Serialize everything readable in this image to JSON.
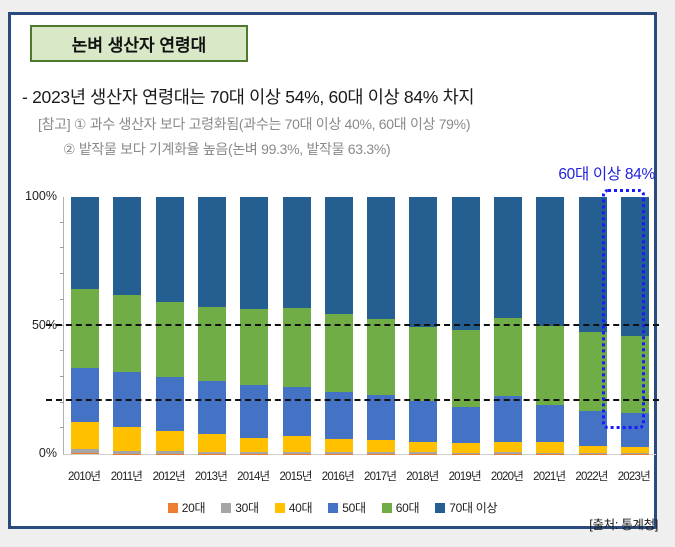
{
  "header": {
    "title": "논벼 생산자 연령대",
    "bullet": "- 2023년 생산자 연령대는 70대 이상 54%, 60대 이상 84% 차지",
    "note1": "[참고] ① 과수 생산자 보다 고령화됨(과수는 70대 이상 40%, 60대 이상 79%)",
    "note2": "② 밭작물 보다 기계화율 높음(논벼 99.3%, 밭작물 63.3%)"
  },
  "annotation": {
    "text": "60대 이상 84%",
    "color": "#2222dd",
    "box_color": "#1a1aff",
    "highlighted_year": "2023년"
  },
  "footer": {
    "source": "[출처: 통계청]"
  },
  "colors": {
    "frame_border": "#2b4a7d",
    "title_box_bg": "#d9e8c6",
    "title_box_border": "#4e7a2e",
    "note_gray": "#8a8a8a",
    "page_bg": "#efefef"
  },
  "chart_data": {
    "type": "bar",
    "stacked": true,
    "unit": "%",
    "categories": [
      "2010년",
      "2011년",
      "2012년",
      "2013년",
      "2014년",
      "2015년",
      "2016년",
      "2017년",
      "2018년",
      "2019년",
      "2020년",
      "2021년",
      "2022년",
      "2023년"
    ],
    "series": [
      {
        "name": "20대",
        "color": "#ED7D31",
        "values": [
          0.3,
          0.2,
          0.2,
          0.2,
          0.2,
          0.2,
          0.2,
          0.15,
          0.15,
          0.1,
          0.1,
          0.1,
          0.1,
          0.1
        ]
      },
      {
        "name": "30대",
        "color": "#A5A5A5",
        "values": [
          1.6,
          1.0,
          0.8,
          0.7,
          0.7,
          0.5,
          0.5,
          0.45,
          0.45,
          0.4,
          0.5,
          0.4,
          0.3,
          0.3
        ]
      },
      {
        "name": "40대",
        "color": "#FFC000",
        "values": [
          10.7,
          9.4,
          7.9,
          6.8,
          5.5,
          6.3,
          5.1,
          4.8,
          3.9,
          3.6,
          4.2,
          4.0,
          2.7,
          2.5
        ]
      },
      {
        "name": "50대",
        "color": "#4472C4",
        "values": [
          20.7,
          21.4,
          20.9,
          20.7,
          20.3,
          18.9,
          18.4,
          17.5,
          16.0,
          14.2,
          17.7,
          14.5,
          13.5,
          13.1
        ]
      },
      {
        "name": "60대",
        "color": "#70AD47",
        "values": [
          31.0,
          30.0,
          29.2,
          28.8,
          29.7,
          30.9,
          30.4,
          29.7,
          29.0,
          30.0,
          30.6,
          31.0,
          30.9,
          30.0
        ]
      },
      {
        "name": "70대 이상",
        "color": "#255E91",
        "values": [
          35.7,
          38.0,
          41.0,
          42.8,
          43.6,
          43.2,
          45.4,
          47.4,
          50.5,
          51.7,
          46.9,
          50.0,
          52.5,
          54.0
        ]
      }
    ],
    "ylabel": "",
    "xlabel": "",
    "ylim": [
      0,
      100
    ],
    "yticks_labeled": [
      {
        "value": 0,
        "label": "0%"
      },
      {
        "value": 50,
        "label": "50%"
      },
      {
        "value": 100,
        "label": "100%"
      }
    ],
    "yticks_minor_step": 10,
    "reference_lines": [
      {
        "value": 50,
        "style": "dashed"
      },
      {
        "value": 20.5,
        "style": "dashed"
      }
    ],
    "legend_position": "bottom",
    "grid": false
  }
}
